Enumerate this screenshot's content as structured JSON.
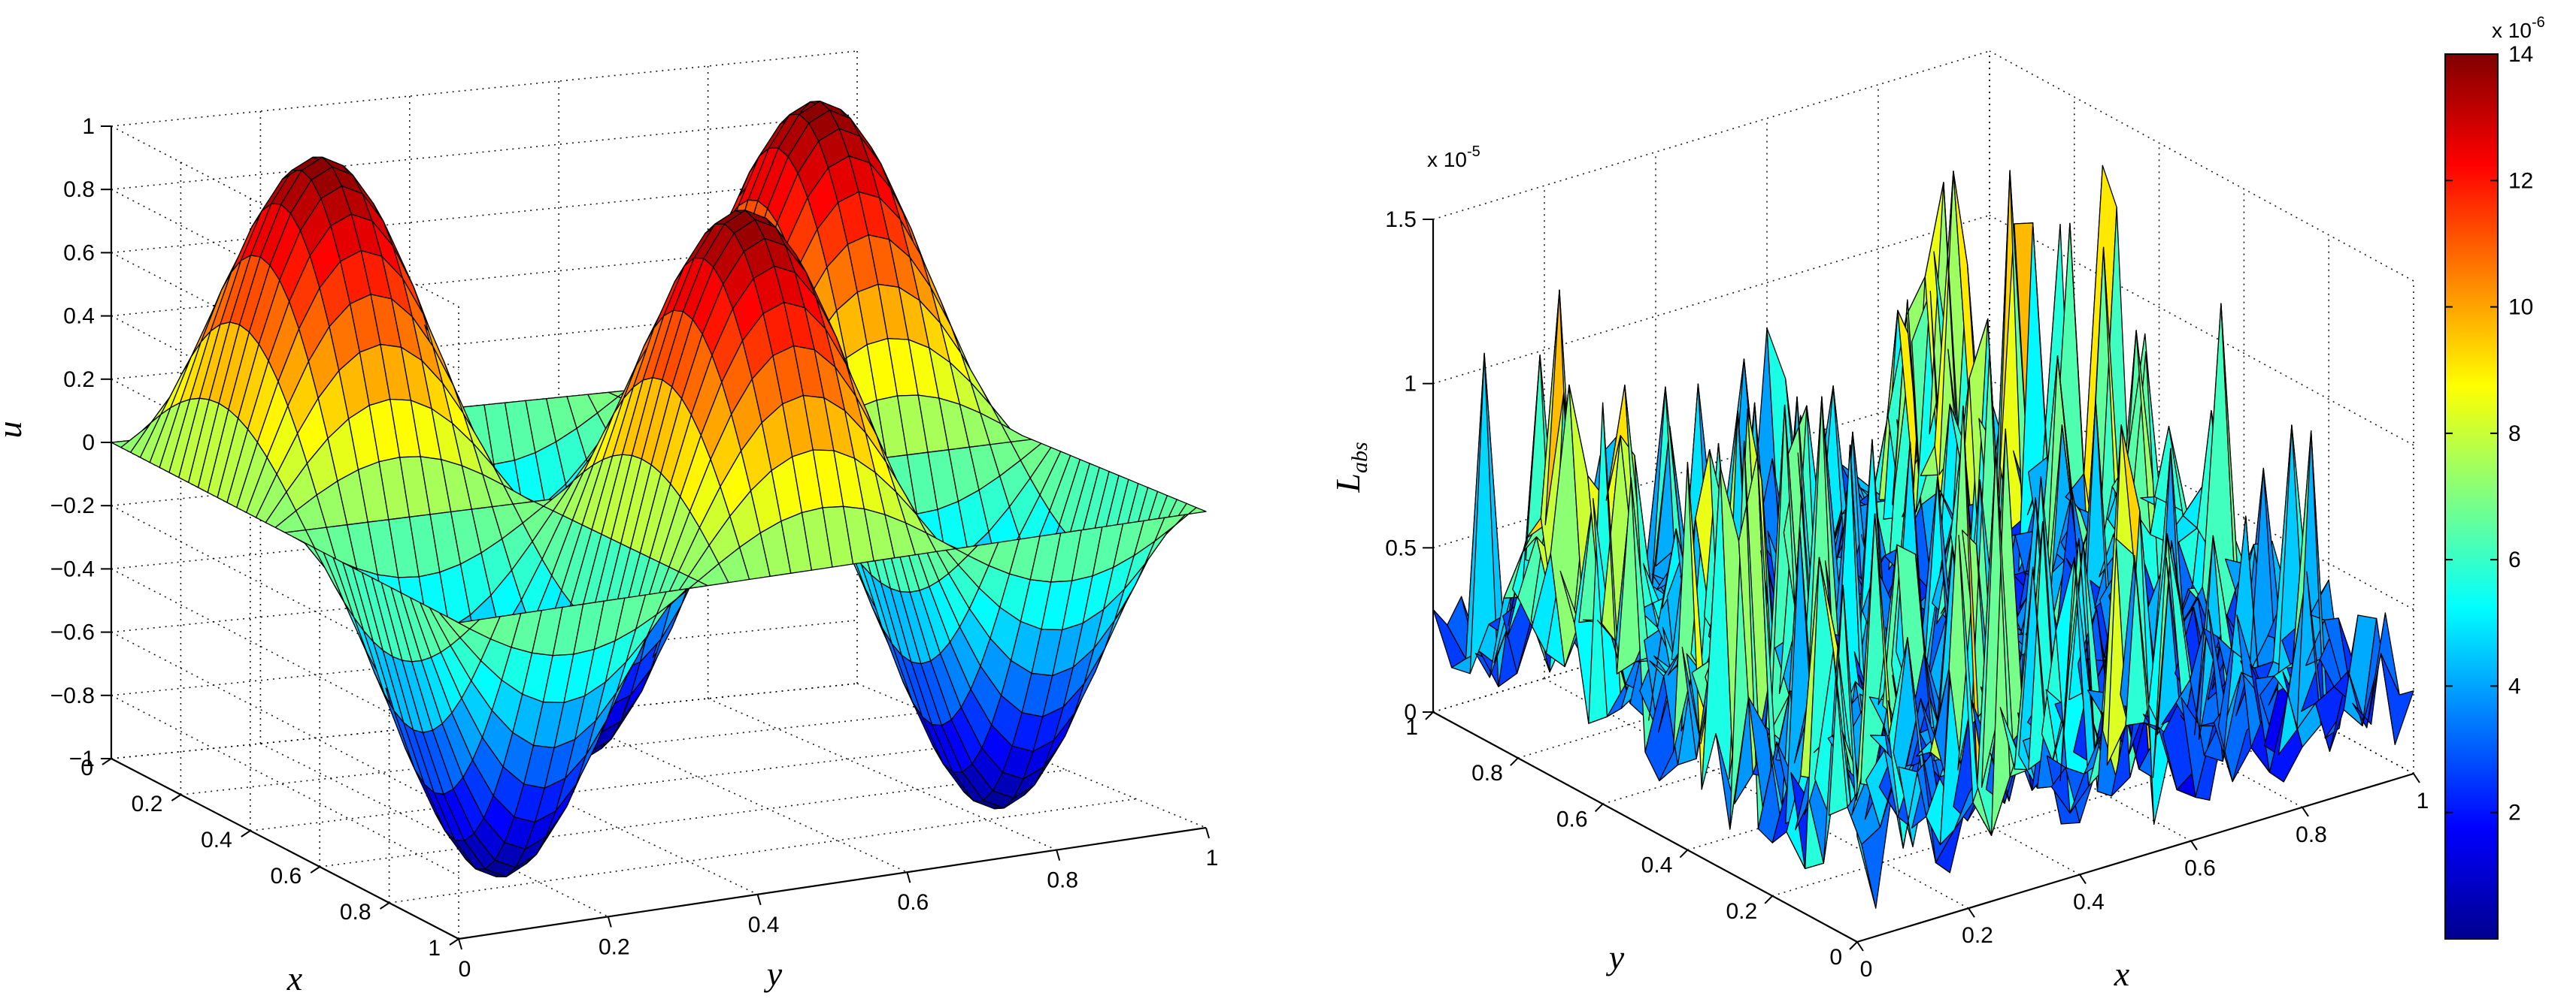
{
  "chart_data": [
    {
      "type": "surface",
      "xlabel": "x",
      "ylabel": "y",
      "zlabel": "u",
      "x_ticks": [
        "0",
        "0.2",
        "0.4",
        "0.6",
        "0.8",
        "1"
      ],
      "y_ticks": [
        "0",
        "0.2",
        "0.4",
        "0.6",
        "0.8",
        "1"
      ],
      "z_ticks": [
        "1",
        "0.8",
        "0.6",
        "0.4",
        "0.2",
        "0",
        "-0.2",
        "-0.4",
        "-0.6",
        "-0.8",
        "-1"
      ],
      "xlim": [
        0,
        1
      ],
      "ylim": [
        0,
        1
      ],
      "zlim": [
        -1,
        1
      ],
      "colormap": "jet",
      "grid": true
    },
    {
      "type": "surface",
      "xlabel": "x",
      "ylabel": "y",
      "zlabel_main": "L",
      "zlabel_sub": "abs",
      "z_scale_label": "x 10",
      "z_scale_exp": "-5",
      "x_ticks": [
        "0",
        "0.2",
        "0.4",
        "0.6",
        "0.8",
        "1"
      ],
      "y_ticks": [
        "0",
        "0.2",
        "0.4",
        "0.6",
        "0.8",
        "1"
      ],
      "z_ticks": [
        "1.5",
        "1",
        "0.5",
        "0"
      ],
      "xlim": [
        0,
        1
      ],
      "ylim": [
        0,
        1
      ],
      "zlim": [
        0,
        1.5
      ],
      "colormap": "jet",
      "grid": true,
      "colorbar": {
        "ticks": [
          "14",
          "12",
          "10",
          "8",
          "6",
          "4",
          "2"
        ],
        "scale_label": "x 10",
        "scale_exp": "-6",
        "range": [
          0,
          14
        ]
      }
    }
  ]
}
